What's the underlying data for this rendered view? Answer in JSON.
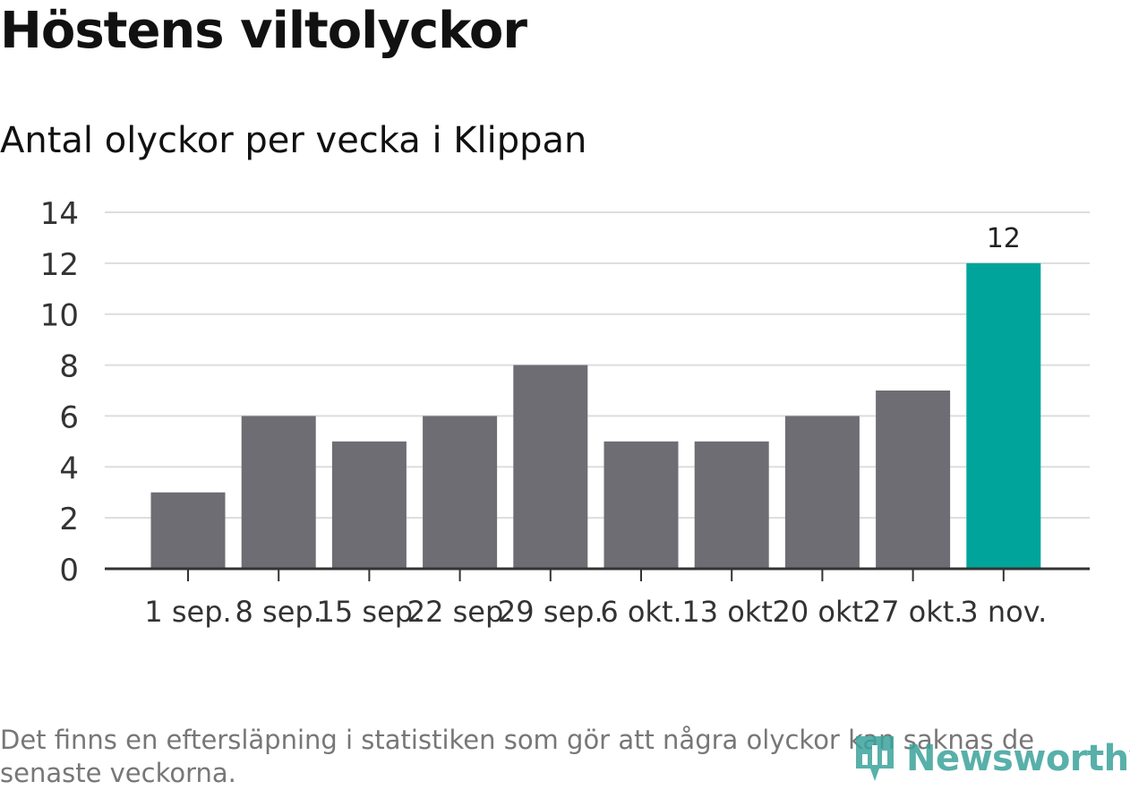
{
  "title": "Höstens viltolyckor",
  "subtitle": "Antal olyckor per vecka i Klippan",
  "footnote": "Det finns en eftersläpning i statistiken som gör att några olyckor kan saknas de senaste veckorna.",
  "logo": {
    "text": "Newsworthy",
    "icon": "bar-chart-pin-icon",
    "color": "#3aa39b"
  },
  "chart_data": {
    "type": "bar",
    "categories": [
      "1 sep.",
      "8 sep.",
      "15 sep.",
      "22 sep.",
      "29 sep.",
      "6 okt.",
      "13 okt.",
      "20 okt.",
      "27 okt.",
      "3 nov."
    ],
    "values": [
      3,
      6,
      5,
      6,
      8,
      5,
      5,
      6,
      7,
      12
    ],
    "ylim": [
      0,
      14
    ],
    "yticks": [
      "0",
      "2",
      "4",
      "6",
      "8",
      "10",
      "12",
      "14"
    ],
    "grid": true,
    "data_labels": [
      {
        "category": "3 nov.",
        "text": "12"
      }
    ],
    "colors": {
      "default": "#6e6d73",
      "highlight": "#00a49a",
      "grid": "#dddddd",
      "axis": "#333333"
    },
    "highlight_category": "3 nov."
  }
}
